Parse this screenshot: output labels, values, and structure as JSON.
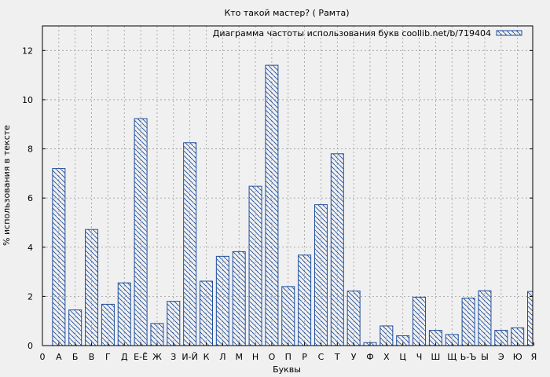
{
  "chart_data": {
    "type": "bar",
    "title": "Кто такой мастер? ( Рамта)",
    "xlabel": "Буквы",
    "ylabel": "% использования в тексте",
    "legend": {
      "label": "Диаграмма частоты использования букв coollib.net/b/719404",
      "position": "top-right"
    },
    "x_tick_first": "0",
    "categories": [
      "А",
      "Б",
      "В",
      "Г",
      "Д",
      "Е-Ё",
      "Ж",
      "З",
      "И-Й",
      "К",
      "Л",
      "М",
      "Н",
      "О",
      "П",
      "Р",
      "С",
      "Т",
      "У",
      "Ф",
      "Х",
      "Ц",
      "Ч",
      "Ш",
      "Щ",
      "Ь-Ъ",
      "Ы",
      "Э",
      "Ю",
      "Я"
    ],
    "values": [
      7.2,
      1.45,
      4.72,
      1.68,
      2.55,
      9.23,
      0.9,
      1.8,
      8.25,
      2.62,
      3.63,
      3.82,
      6.48,
      11.4,
      2.4,
      3.68,
      5.73,
      7.8,
      2.22,
      0.12,
      0.8,
      0.4,
      1.97,
      0.62,
      0.45,
      1.93,
      2.23,
      0.62,
      0.72,
      2.2
    ],
    "yticks": [
      0,
      2,
      4,
      6,
      8,
      10,
      12
    ],
    "ylim": [
      0,
      13
    ],
    "grid": true,
    "colors": {
      "background": "#f0f0f0",
      "plot_background": "#f0f0f0",
      "bar_stroke": "#1f4e9c",
      "hatch": "#1f4e9c",
      "grid": "#9a9a9a",
      "axis": "#000000"
    }
  }
}
